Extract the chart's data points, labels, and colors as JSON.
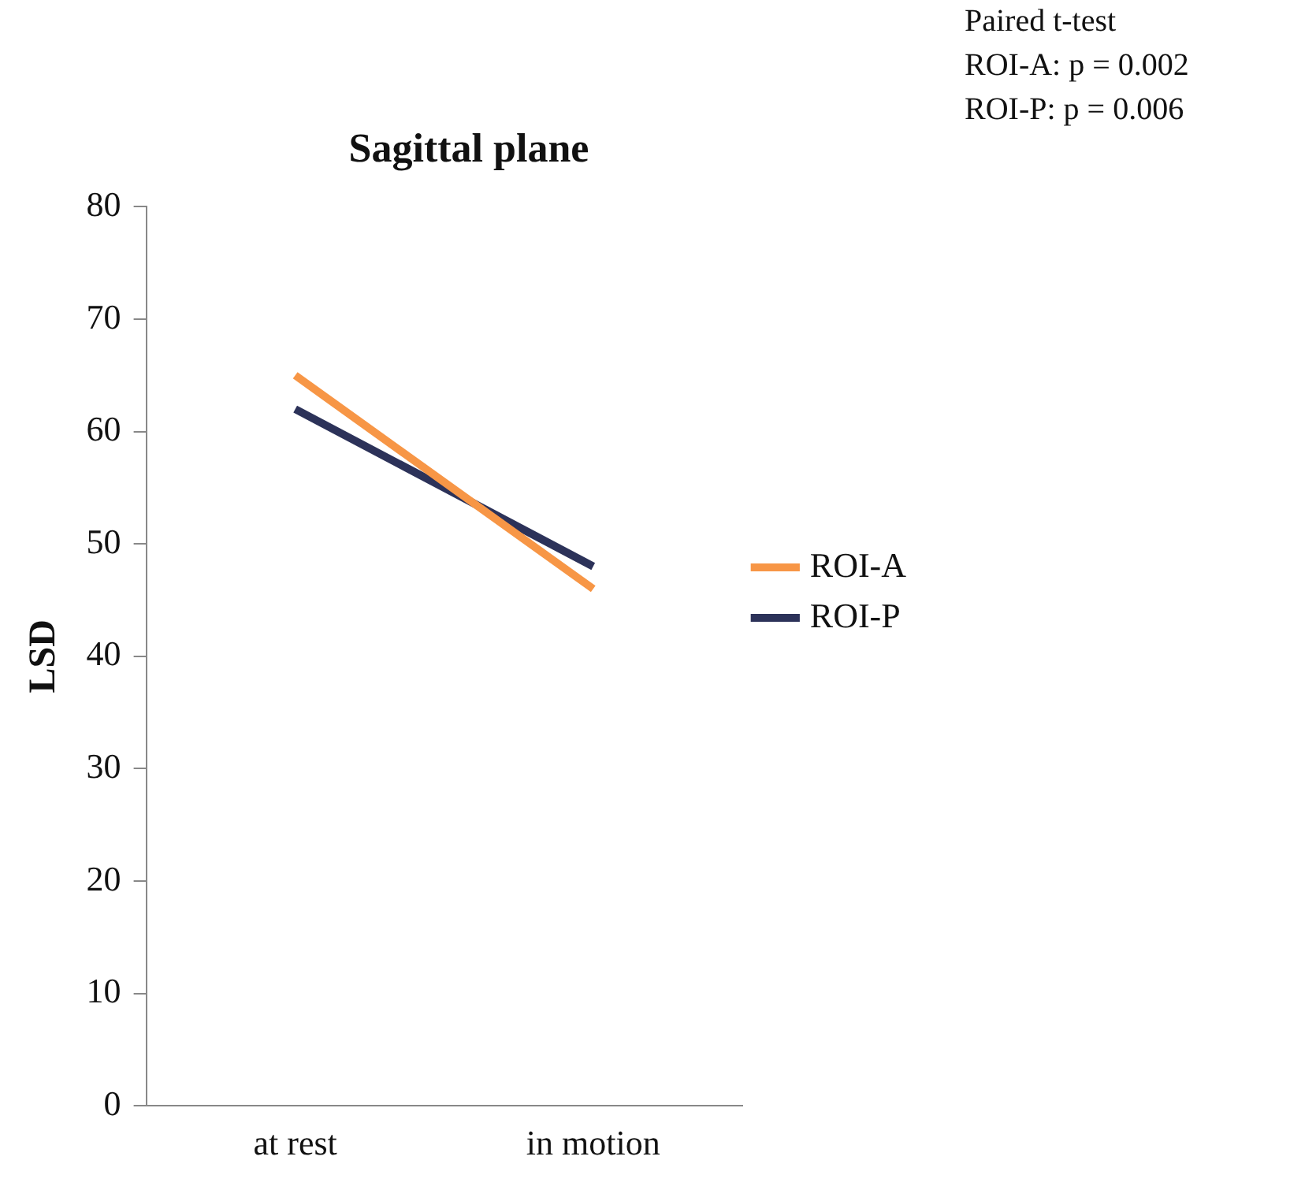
{
  "chart_data": {
    "type": "line",
    "title": "Sagittal plane",
    "ylabel": "LSD",
    "categories": [
      "at rest",
      "in motion"
    ],
    "series": [
      {
        "name": "ROI-A",
        "color": "#f79646",
        "values": [
          65,
          46
        ]
      },
      {
        "name": "ROI-P",
        "color": "#2c3259",
        "values": [
          62,
          48
        ]
      }
    ],
    "ylim": [
      0,
      80
    ],
    "yticks": [
      0,
      10,
      20,
      30,
      40,
      50,
      60,
      70,
      80
    ],
    "grid": false,
    "legend": "right",
    "marker": "none",
    "line_style": "solid",
    "annotations": [
      "Paired t-test",
      "ROI-A: p = 0.002",
      "ROI-P: p = 0.006"
    ]
  }
}
